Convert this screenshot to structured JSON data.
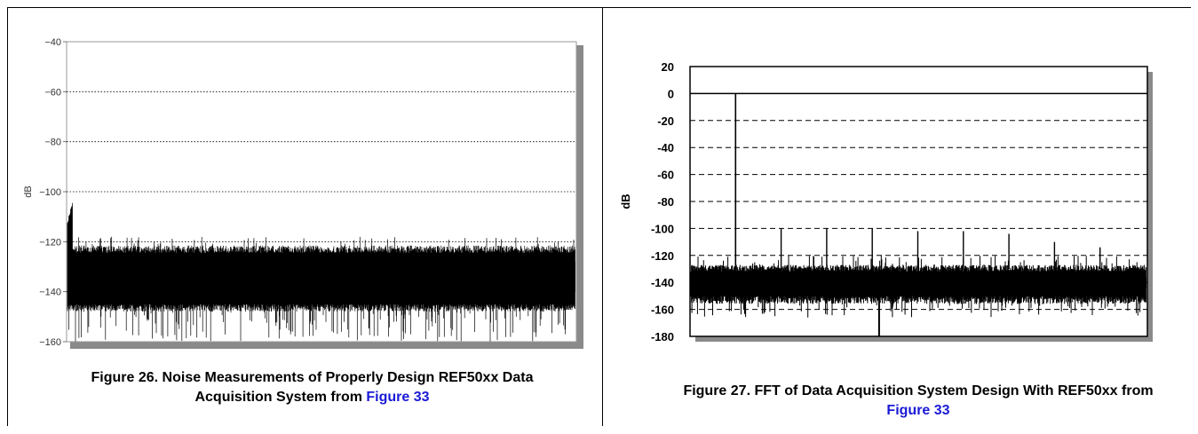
{
  "chart_data": [
    {
      "type": "line",
      "title": "",
      "xlabel": "",
      "ylabel": "dB",
      "ylim": [
        -160,
        -40
      ],
      "yticks": [
        "−40",
        "−60",
        "−80",
        "−100",
        "−120",
        "−140",
        "−160"
      ],
      "ytick_values": [
        -40,
        -60,
        -80,
        -100,
        -120,
        -140,
        -160
      ],
      "grid": "horizontal dotted",
      "series": [
        {
          "noise_floor_mean": -134,
          "noise_band_top": -123,
          "noise_band_bottom": -145,
          "min_spike": -160,
          "start_peak": -114
        }
      ]
    },
    {
      "type": "line",
      "title": "",
      "xlabel": "",
      "ylabel": "dB",
      "ylim": [
        -180,
        20
      ],
      "yticks": [
        "20",
        "0",
        "-20",
        "-40",
        "-60",
        "-80",
        "-100",
        "-120",
        "-140",
        "-160",
        "-180"
      ],
      "ytick_values": [
        20,
        0,
        -20,
        -40,
        -60,
        -80,
        -100,
        -120,
        -140,
        -160,
        -180
      ],
      "grid": "horizontal dashed",
      "series": [
        {
          "fundamental_dB": 0,
          "harmonics_dB": [
            -100,
            -100,
            -100,
            -102,
            -102,
            -104,
            -110,
            -114,
            -116,
            -118
          ],
          "noise_floor_mean": -140,
          "min_spike": -180
        }
      ]
    }
  ],
  "captions": {
    "left": {
      "text": "Figure 26. Noise Measurements of Properly Design REF50xx Data Acquisition System from ",
      "link": "Figure 33"
    },
    "right": {
      "text": "Figure 27. FFT of Data Acquisition System Design With REF50xx from ",
      "link": "Figure 33"
    }
  },
  "colors": {
    "trace": "#000000",
    "link": "#1a1ad6",
    "shadow": "#8a8a8a",
    "grid": "#000000"
  }
}
